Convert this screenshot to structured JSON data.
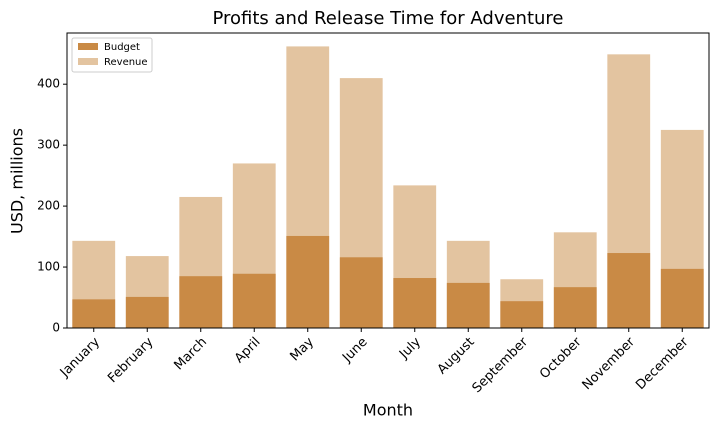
{
  "chart_data": {
    "type": "bar",
    "barmode": "overlay",
    "title": "Profits and Release Time for Adventure",
    "x_label": "Month",
    "y_label": "USD, millions",
    "categories": [
      "January",
      "February",
      "March",
      "April",
      "May",
      "June",
      "July",
      "August",
      "September",
      "October",
      "November",
      "December"
    ],
    "series": [
      {
        "name": "Budget",
        "color": "#c98a45",
        "values": [
          47,
          51,
          85,
          89,
          151,
          116,
          82,
          74,
          44,
          67,
          123,
          97
        ]
      },
      {
        "name": "Revenue",
        "color": "#e3c4a0",
        "values": [
          143,
          118,
          215,
          270,
          462,
          410,
          234,
          143,
          80,
          157,
          449,
          325
        ]
      }
    ],
    "ylim": [
      0,
      484
    ],
    "yticks": [
      0,
      100,
      200,
      300,
      400
    ],
    "grid": false,
    "legend": "upper left"
  }
}
